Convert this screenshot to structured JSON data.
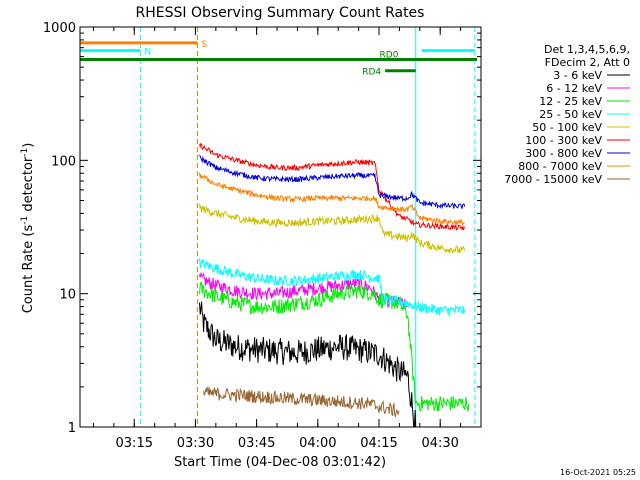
{
  "chart_data": {
    "type": "line",
    "title": "RHESSI Observing Summary Count Rates",
    "xlabel": "Start Time (04-Dec-08 03:01:42)",
    "ylabel_main": "Count Rate (s",
    "ylabel_sup1": "-1",
    "ylabel_mid": " detector",
    "ylabel_sup2": "-1",
    "ylabel_end": ")",
    "timestamp": "16-Oct-2021 05:25",
    "y_scale": "log",
    "ylim": [
      1,
      1000
    ],
    "xlim": [
      "03:01:42",
      "04:40:00"
    ],
    "x_ticks": [
      "03:15",
      "03:30",
      "03:45",
      "04:00",
      "04:15",
      "04:30"
    ],
    "y_ticks": [
      "1",
      "10",
      "100",
      "1000"
    ],
    "legend_header": [
      "Det 1,3,4,5,6,9,",
      "FDecim 2, Att 0"
    ],
    "series": [
      {
        "name": "3 - 6 keV",
        "color": "#000000",
        "points": [
          [
            "03:31",
            "8"
          ],
          [
            "03:32",
            "6"
          ],
          [
            "03:35",
            "4.5"
          ],
          [
            "03:40",
            "4"
          ],
          [
            "03:45",
            "3.8"
          ],
          [
            "03:50",
            "3.7"
          ],
          [
            "03:55",
            "3.6"
          ],
          [
            "04:00",
            "3.8"
          ],
          [
            "04:05",
            "4"
          ],
          [
            "04:10",
            "3.8"
          ],
          [
            "04:15",
            "3.5"
          ],
          [
            "04:20",
            "2.6"
          ],
          [
            "04:22",
            "2.4"
          ],
          [
            "04:24",
            "1.0"
          ]
        ]
      },
      {
        "name": "6 - 12 keV",
        "color": "#ff00ff",
        "points": [
          [
            "03:31",
            "13"
          ],
          [
            "03:35",
            "11.5"
          ],
          [
            "03:40",
            "10.5"
          ],
          [
            "03:45",
            "10"
          ],
          [
            "03:50",
            "10"
          ],
          [
            "03:55",
            "10.5"
          ],
          [
            "04:00",
            "11"
          ],
          [
            "04:05",
            "11.5"
          ],
          [
            "04:10",
            "12"
          ],
          [
            "04:13",
            "11"
          ],
          [
            "04:15",
            "9"
          ],
          [
            "04:20",
            "8.5"
          ],
          [
            "04:22",
            "8"
          ]
        ]
      },
      {
        "name": "12 - 25 keV",
        "color": "#00ee00",
        "points": [
          [
            "03:31",
            "11"
          ],
          [
            "03:35",
            "9.5"
          ],
          [
            "03:40",
            "8.5"
          ],
          [
            "03:45",
            "8"
          ],
          [
            "03:50",
            "8"
          ],
          [
            "03:55",
            "8.5"
          ],
          [
            "04:00",
            "9"
          ],
          [
            "04:05",
            "10"
          ],
          [
            "04:10",
            "10.5"
          ],
          [
            "04:14",
            "10"
          ],
          [
            "04:15",
            "9"
          ],
          [
            "04:20",
            "8.5"
          ],
          [
            "04:22",
            "7"
          ],
          [
            "04:24",
            "1.5"
          ],
          [
            "04:37",
            "1.5"
          ]
        ]
      },
      {
        "name": "25 - 50 keV",
        "color": "#00ffff",
        "points": [
          [
            "03:31",
            "17"
          ],
          [
            "03:35",
            "15.5"
          ],
          [
            "03:40",
            "14"
          ],
          [
            "03:45",
            "13"
          ],
          [
            "03:50",
            "12.5"
          ],
          [
            "03:55",
            "12.5"
          ],
          [
            "04:00",
            "13"
          ],
          [
            "04:05",
            "13.5"
          ],
          [
            "04:10",
            "14"
          ],
          [
            "04:15",
            "13"
          ],
          [
            "04:16",
            "9"
          ],
          [
            "04:22",
            "8.5"
          ],
          [
            "04:24",
            "8"
          ],
          [
            "04:30",
            "7.5"
          ],
          [
            "04:36",
            "7.5"
          ]
        ]
      },
      {
        "name": "50 - 100 keV",
        "color": "#ccc000",
        "points": [
          [
            "03:31",
            "44"
          ],
          [
            "03:35",
            "40"
          ],
          [
            "03:40",
            "37"
          ],
          [
            "03:45",
            "35"
          ],
          [
            "03:50",
            "34"
          ],
          [
            "03:55",
            "34"
          ],
          [
            "04:00",
            "35"
          ],
          [
            "04:05",
            "35"
          ],
          [
            "04:10",
            "36"
          ],
          [
            "04:15",
            "37"
          ],
          [
            "04:16",
            "28"
          ],
          [
            "04:22",
            "26"
          ],
          [
            "04:23",
            "28"
          ],
          [
            "04:25",
            "24"
          ],
          [
            "04:30",
            "22"
          ],
          [
            "04:36",
            "21"
          ]
        ]
      },
      {
        "name": "100 - 300 keV",
        "color": "#ff0000",
        "points": [
          [
            "03:31",
            "130"
          ],
          [
            "03:35",
            "110"
          ],
          [
            "03:40",
            "100"
          ],
          [
            "03:45",
            "92"
          ],
          [
            "03:50",
            "88"
          ],
          [
            "03:55",
            "88"
          ],
          [
            "04:00",
            "92"
          ],
          [
            "04:05",
            "95"
          ],
          [
            "04:10",
            "97"
          ],
          [
            "04:14",
            "95"
          ],
          [
            "04:15",
            "60"
          ],
          [
            "04:20",
            "38"
          ],
          [
            "04:22",
            "36"
          ],
          [
            "04:24",
            "33"
          ],
          [
            "04:30",
            "32"
          ],
          [
            "04:36",
            "31"
          ]
        ]
      },
      {
        "name": "300 - 800 keV",
        "color": "#0000dd",
        "points": [
          [
            "03:31",
            "105"
          ],
          [
            "03:35",
            "88"
          ],
          [
            "03:40",
            "80"
          ],
          [
            "03:45",
            "74"
          ],
          [
            "03:50",
            "72"
          ],
          [
            "03:55",
            "72"
          ],
          [
            "04:00",
            "74"
          ],
          [
            "04:05",
            "76"
          ],
          [
            "04:10",
            "77"
          ],
          [
            "04:14",
            "76"
          ],
          [
            "04:15",
            "55"
          ],
          [
            "04:20",
            "52"
          ],
          [
            "04:22",
            "52"
          ],
          [
            "04:23",
            "56"
          ],
          [
            "04:25",
            "48"
          ],
          [
            "04:30",
            "46"
          ],
          [
            "04:36",
            "45"
          ]
        ]
      },
      {
        "name": "800 - 7000 keV",
        "color": "#ff8000",
        "points": [
          [
            "03:31",
            "78"
          ],
          [
            "03:35",
            "66"
          ],
          [
            "03:40",
            "60"
          ],
          [
            "03:45",
            "55"
          ],
          [
            "03:50",
            "52"
          ],
          [
            "03:55",
            "51"
          ],
          [
            "04:00",
            "52"
          ],
          [
            "04:05",
            "52"
          ],
          [
            "04:10",
            "52"
          ],
          [
            "04:14",
            "52"
          ],
          [
            "04:15",
            "45"
          ],
          [
            "04:20",
            "43"
          ],
          [
            "04:22",
            "43"
          ],
          [
            "04:23",
            "45"
          ],
          [
            "04:25",
            "37"
          ],
          [
            "04:30",
            "35"
          ],
          [
            "04:36",
            "34"
          ]
        ]
      },
      {
        "name": "7000 - 15000 keV",
        "color": "#996633",
        "points": [
          [
            "03:32",
            "1.8"
          ],
          [
            "04:12",
            "1.5"
          ],
          [
            "04:20",
            "1.3"
          ]
        ]
      }
    ],
    "annotations": [
      {
        "label": "S",
        "color": "#ff8000",
        "y": 760,
        "x_start": "03:01:42",
        "x_end": "03:30:30"
      },
      {
        "label": "N",
        "color": "#00ffff",
        "y": 665,
        "x_start": "03:01:42",
        "x_end": "03:16:30"
      },
      {
        "label": "N",
        "color": "#00ffff",
        "y": 665,
        "x_start": "04:25:30",
        "x_end": "04:38:30",
        "show_label": false
      },
      {
        "label": "RD0",
        "color": "#008000",
        "y": 570,
        "x_start": "03:01:42",
        "x_end": "04:39:00"
      },
      {
        "label": "RD4",
        "color": "#008000",
        "y": 470,
        "x_start": "04:16:30",
        "x_end": "04:24:00"
      }
    ],
    "vlines": [
      {
        "x": "03:01:42",
        "color": "#00ffff",
        "style": "solid"
      },
      {
        "x": "03:16:30",
        "color": "#00ffff",
        "style": "dashed"
      },
      {
        "x": "03:30:30",
        "color": "#ff8000",
        "style": "dashed"
      },
      {
        "x": "04:24:00",
        "color": "#00ffff",
        "style": "solid"
      },
      {
        "x": "04:38:30",
        "color": "#00ffff",
        "style": "dashed"
      }
    ]
  }
}
